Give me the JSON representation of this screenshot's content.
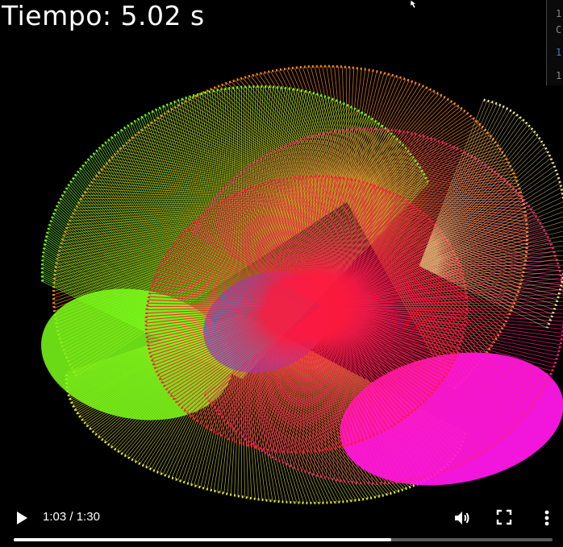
{
  "overlay": {
    "title": "Tiempo: 5.02 s"
  },
  "side_panel": {
    "lines": [
      "1",
      "C",
      "1",
      "1"
    ],
    "highlight_color": "#3d7bd8"
  },
  "player": {
    "current_time": "1:03",
    "separator": " / ",
    "duration": "1:30",
    "progress_fraction": 0.7,
    "buffered_fraction": 0.7,
    "icons": {
      "play": "play-icon",
      "volume": "volume-icon",
      "fullscreen": "fullscreen-icon",
      "menu": "more-vert-icon"
    }
  },
  "colors": {
    "background": "#000000",
    "orange": "#ff8a1c",
    "green": "#7cff1a",
    "yellow": "#e6e62a",
    "red": "#ff1a3a",
    "pink": "#ff1f7a",
    "magenta": "#ff16e8",
    "blue": "#4a5cff"
  }
}
